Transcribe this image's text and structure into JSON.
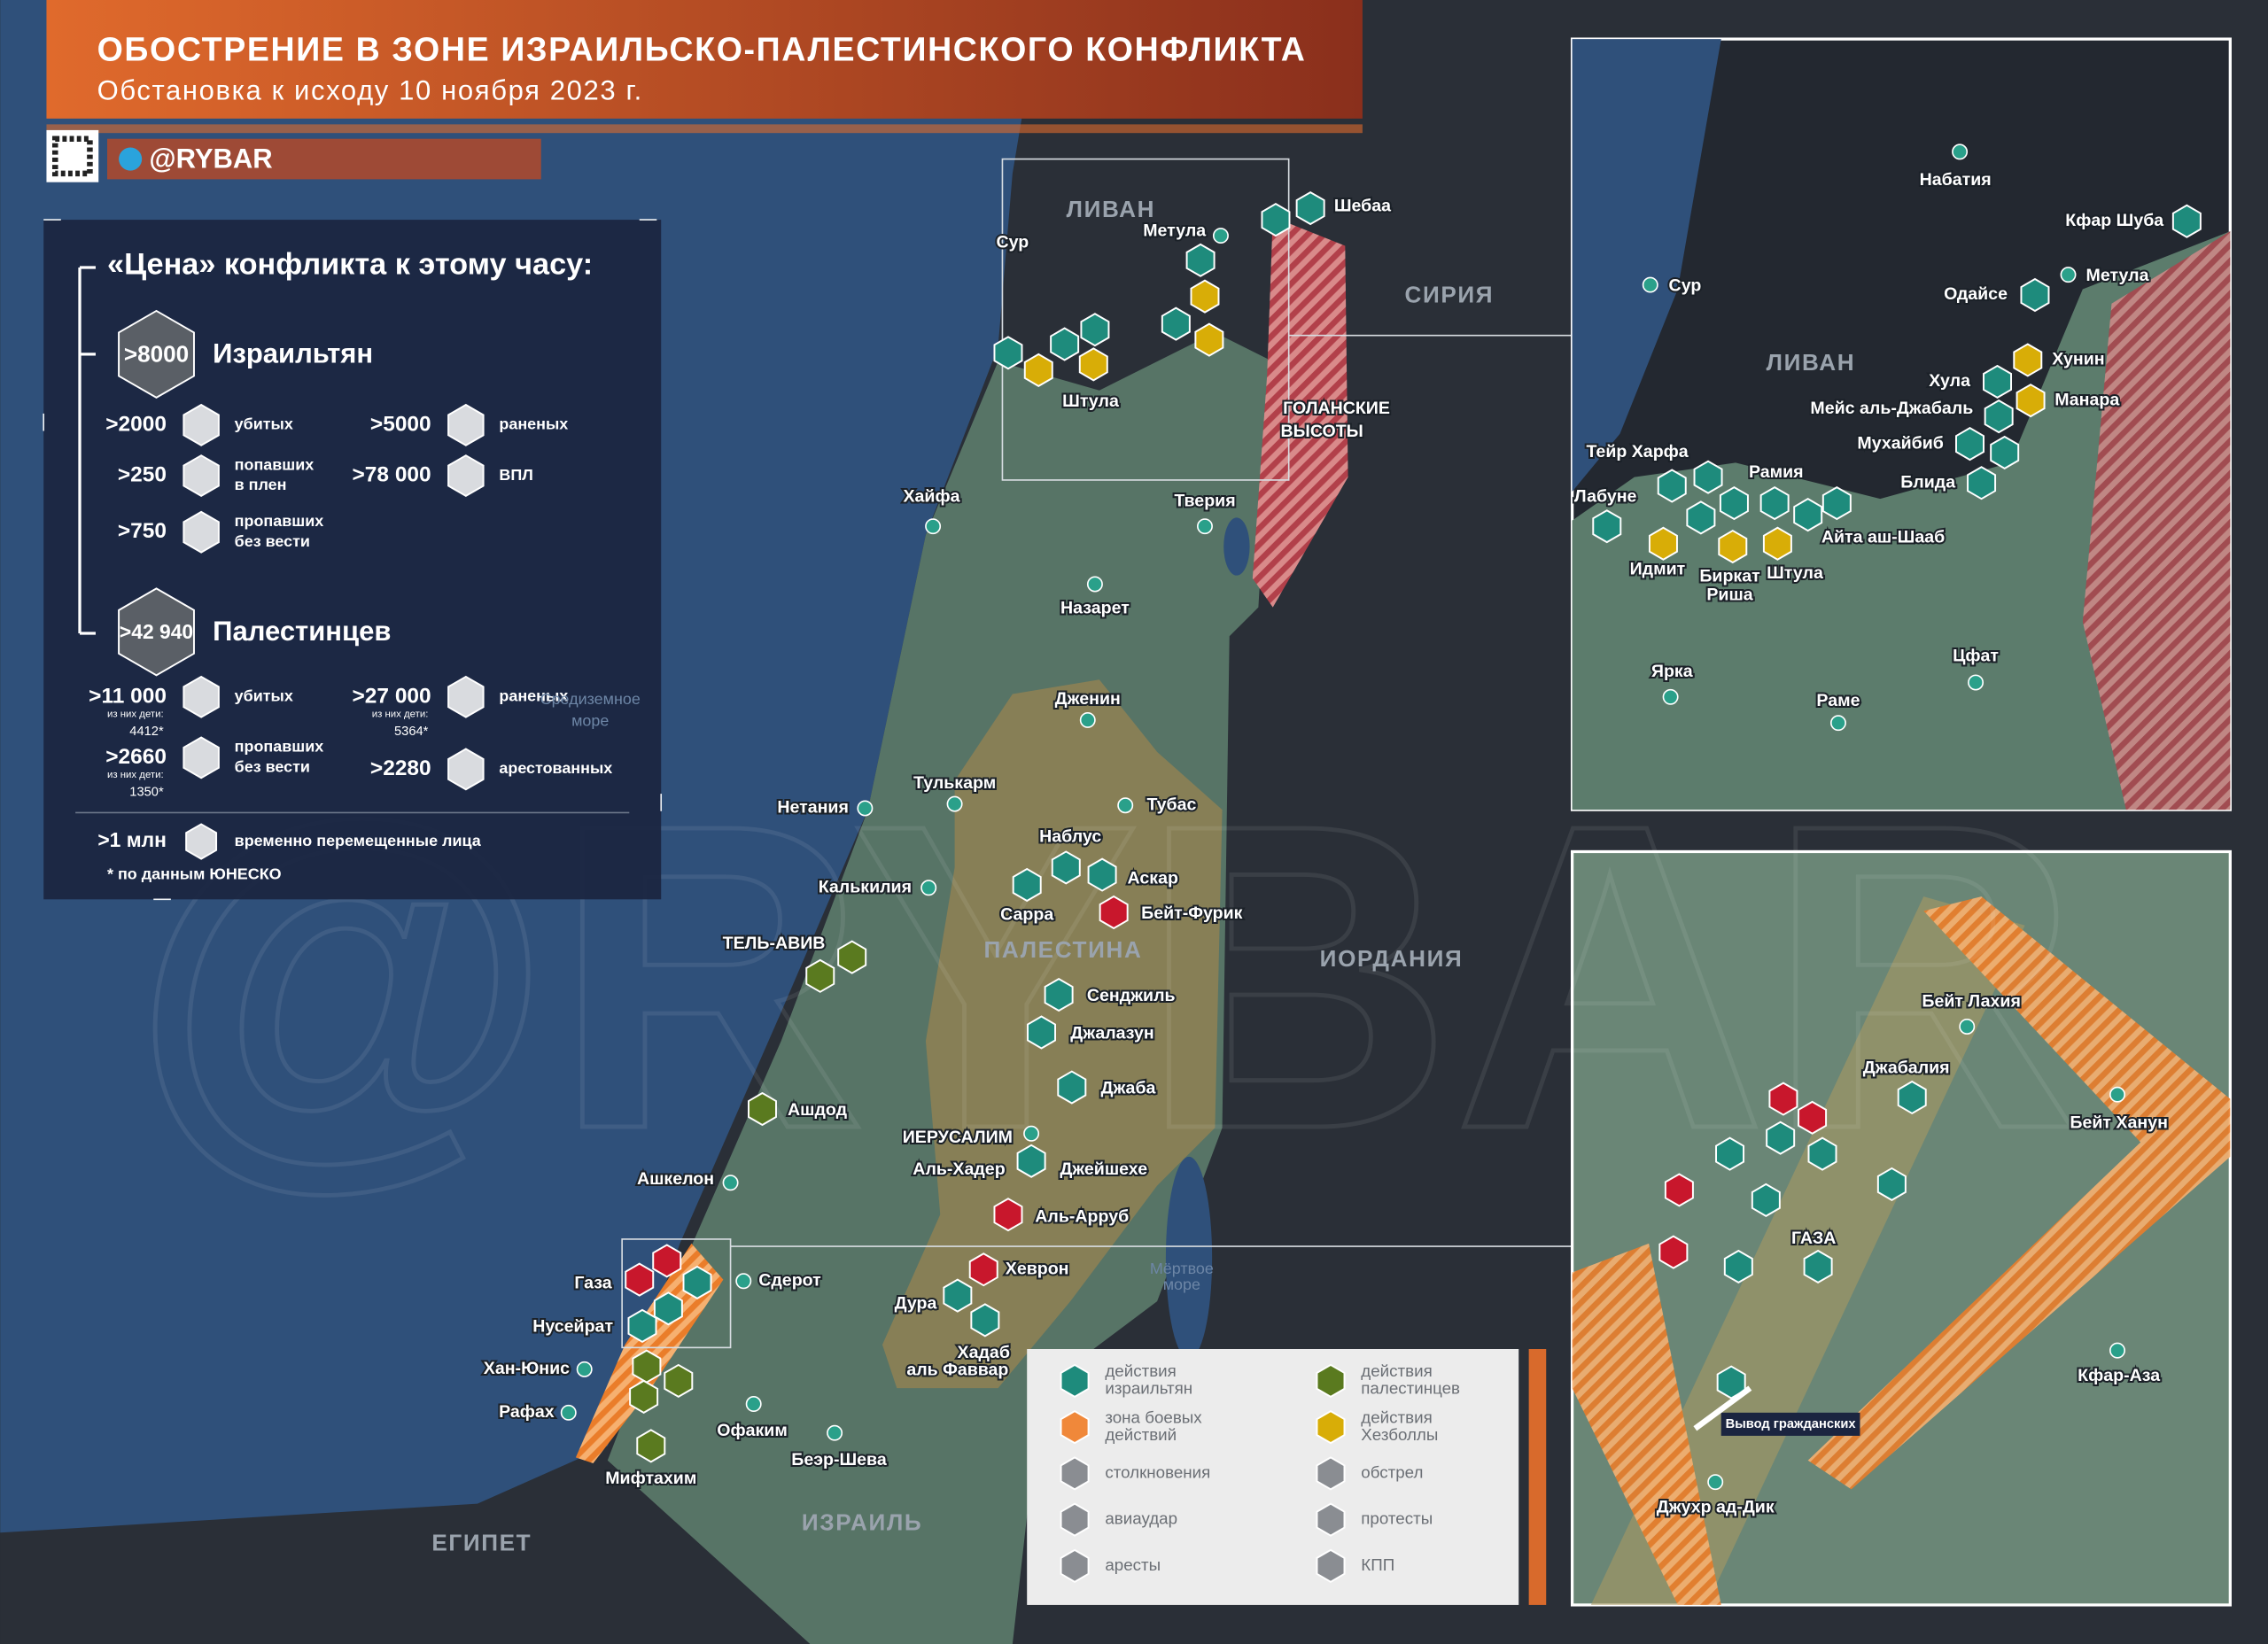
{
  "header": {
    "title": "ОБОСТРЕНИЕ В ЗОНЕ ИЗРАИЛЬСКО-ПАЛЕСТИНСКОГО КОНФЛИКТА",
    "subtitle": "Обстановка к исходу 10 ноября 2023 г.",
    "handle": "@RYBAR"
  },
  "stats": {
    "heading": "«Цена» конфликта к этому часу:",
    "israelis": {
      "total": ">8000",
      "name": "Израильтян",
      "items": [
        {
          "value": ">2000",
          "label": [
            "убитых"
          ]
        },
        {
          "value": ">5000",
          "label": [
            "раненых"
          ]
        },
        {
          "value": ">250",
          "label": [
            "попавших",
            "в плен"
          ]
        },
        {
          "value": ">78 000",
          "label": [
            "ВПЛ"
          ]
        },
        {
          "value": ">750",
          "label": [
            "пропавших",
            "без вести"
          ]
        }
      ]
    },
    "palestinians": {
      "total": ">42 940",
      "name": "Палестинцев",
      "items": [
        {
          "value": ">11 000",
          "note": [
            "из них дети:",
            "4412*"
          ],
          "label": [
            "убитых"
          ]
        },
        {
          "value": ">27 000",
          "note": [
            "из них дети:",
            "5364*"
          ],
          "label": [
            "раненых"
          ]
        },
        {
          "value": ">2660",
          "note": [
            "из них дети:",
            "1350*"
          ],
          "label": [
            "пропавших",
            "без вести"
          ]
        },
        {
          "value": ">2280",
          "label": [
            "арестованных"
          ]
        }
      ]
    },
    "displaced": {
      "value": ">1 млн",
      "label": "временно перемещенные лица"
    },
    "footnote": "* по данным ЮНЕСКО"
  },
  "map_labels": [
    "ЛИВАН",
    "Метула",
    "Шебаа",
    "Сур",
    "СИРИЯ",
    "Штула",
    "ГОЛАНСКИЕ",
    "ВЫСОТЫ",
    "Хайфа",
    "Тверия",
    "Назарет",
    "Дженин",
    "Тулькарм",
    "Тубас",
    "Нетания",
    "Наблус",
    "Аскар",
    "Сарра",
    "Бейт-Фурик",
    "Калькилия",
    "ТЕЛЬ-АВИВ",
    "ПАЛЕСТИНА",
    "ИОРДАНИЯ",
    "Сенджиль",
    "Джалазун",
    "Джаба",
    "Ашдод",
    "ИЕРУСАЛИМ",
    "Аль-Хадер",
    "Джейшехе",
    "Ашкелон",
    "Аль-Арруб",
    "Хеврон",
    "Газа",
    "Сдерот",
    "Нусейрат",
    "Дура",
    "Хадаб",
    "аль Фаввар",
    "Мёртвое",
    "море",
    "Хан-Юнис",
    "Рафах",
    "Офаким",
    "Беэр-Шева",
    "Мифтахим",
    "ИЗРАИЛЬ",
    "ЕГИПЕТ",
    "Средиземное",
    "море"
  ],
  "lebanon_inset": {
    "labels": [
      "Набатия",
      "Кфар Шуба",
      "Сур",
      "Метула",
      "Одайсе",
      "ЛИВАН",
      "Хунин",
      "Хула",
      "Манара",
      "Мейс аль-Джабаль",
      "Тейр Харфа",
      "Мухайбиб",
      "Рамия",
      "Блида",
      "Лабуне",
      "Айта аш-Шааб",
      "Идмит",
      "Биркат",
      "Риша",
      "Штула",
      "Ярка",
      "Цфат",
      "Раме"
    ]
  },
  "gaza_inset": {
    "labels": [
      "Бейт Лахия",
      "Джабалия",
      "Бейт Ханун",
      "ГАЗА",
      "Кфар-Аза",
      "Джухр ад-Дик"
    ],
    "callout": "Вывод гражданских"
  },
  "legend": [
    {
      "label": [
        "действия",
        "израильтян"
      ],
      "color": "#1e8b7c"
    },
    {
      "label": [
        "действия",
        "палестинцев"
      ],
      "color": "#5a7a1f"
    },
    {
      "label": [
        "зона боевых",
        "действий"
      ],
      "color": "#f0883a"
    },
    {
      "label": [
        "действия",
        "Хезболлы"
      ],
      "color": "#d8ad07"
    },
    {
      "label": [
        "столкновения"
      ],
      "color": "#8a8d92"
    },
    {
      "label": [
        "обстрел"
      ],
      "color": "#8a8d92"
    },
    {
      "label": [
        "авиаудар"
      ],
      "color": "#8a8d92"
    },
    {
      "label": [
        "протесты"
      ],
      "color": "#8a8d92"
    },
    {
      "label": [
        "аресты"
      ],
      "color": "#8a8d92"
    },
    {
      "label": [
        "КПП"
      ],
      "color": "#8a8d92"
    }
  ]
}
